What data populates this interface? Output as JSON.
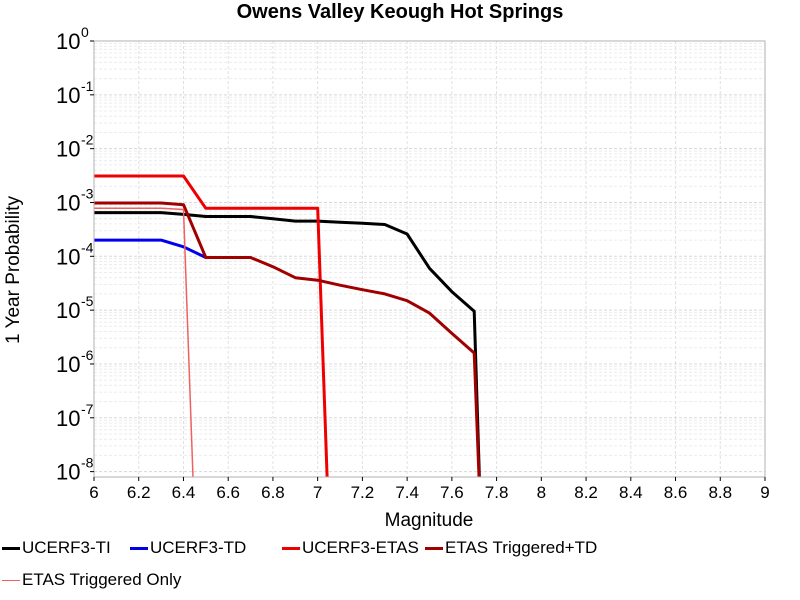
{
  "chart_data": {
    "type": "line",
    "title": "Owens Valley Keough Hot Springs",
    "xlabel": "Magnitude",
    "ylabel": "1 Year Probability",
    "xlim": [
      6,
      9
    ],
    "ylim_log10": [
      -8.1,
      0
    ],
    "yscale": "log",
    "grid": true,
    "x_ticks": [
      "6",
      "6.2",
      "6.4",
      "6.6",
      "6.8",
      "7",
      "7.2",
      "7.4",
      "7.6",
      "7.8",
      "8",
      "8.2",
      "8.4",
      "8.6",
      "8.8",
      "9"
    ],
    "y_ticks": [
      {
        "base": "10",
        "exp": "0"
      },
      {
        "base": "10",
        "exp": "-1"
      },
      {
        "base": "10",
        "exp": "-2"
      },
      {
        "base": "10",
        "exp": "-3"
      },
      {
        "base": "10",
        "exp": "-4"
      },
      {
        "base": "10",
        "exp": "-5"
      },
      {
        "base": "10",
        "exp": "-6"
      },
      {
        "base": "10",
        "exp": "-7"
      },
      {
        "base": "10",
        "exp": "-8"
      }
    ],
    "legend_position": "bottom",
    "series": [
      {
        "name": "UCERF3-TI",
        "color": "#000000",
        "width": 3,
        "points": [
          [
            6.0,
            0.00065
          ],
          [
            6.1,
            0.00065
          ],
          [
            6.2,
            0.00065
          ],
          [
            6.3,
            0.00065
          ],
          [
            6.4,
            0.0006
          ],
          [
            6.5,
            0.00055
          ],
          [
            6.6,
            0.00055
          ],
          [
            6.7,
            0.00055
          ],
          [
            6.8,
            0.0005
          ],
          [
            6.9,
            0.00045
          ],
          [
            7.0,
            0.00045
          ],
          [
            7.1,
            0.00043
          ],
          [
            7.2,
            0.00041
          ],
          [
            7.3,
            0.00039
          ],
          [
            7.4,
            0.00026
          ],
          [
            7.5,
            6e-05
          ],
          [
            7.6,
            2.2e-05
          ],
          [
            7.7,
            9.5e-06
          ],
          [
            7.73,
            1e-09
          ]
        ]
      },
      {
        "name": "UCERF3-TD",
        "color": "#0000ee",
        "width": 3,
        "points": [
          [
            6.0,
            0.0002
          ],
          [
            6.1,
            0.0002
          ],
          [
            6.2,
            0.0002
          ],
          [
            6.3,
            0.0002
          ],
          [
            6.4,
            0.00015
          ],
          [
            6.5,
            9.5e-05
          ]
        ]
      },
      {
        "name": "UCERF3-ETAS",
        "color": "#ee0000",
        "width": 3,
        "points": [
          [
            6.0,
            0.0031
          ],
          [
            6.1,
            0.0031
          ],
          [
            6.2,
            0.0031
          ],
          [
            6.3,
            0.0031
          ],
          [
            6.4,
            0.0031
          ],
          [
            6.5,
            0.00078
          ],
          [
            6.6,
            0.00078
          ],
          [
            6.7,
            0.00078
          ],
          [
            6.8,
            0.00078
          ],
          [
            6.9,
            0.00078
          ],
          [
            7.0,
            0.00078
          ],
          [
            7.05,
            1e-09
          ]
        ]
      },
      {
        "name": "ETAS Triggered+TD",
        "color": "#a00000",
        "width": 3,
        "points": [
          [
            6.0,
            0.00098
          ],
          [
            6.1,
            0.00098
          ],
          [
            6.2,
            0.00098
          ],
          [
            6.3,
            0.00098
          ],
          [
            6.4,
            0.00091
          ],
          [
            6.5,
            9.5e-05
          ],
          [
            6.6,
            9.5e-05
          ],
          [
            6.7,
            9.5e-05
          ],
          [
            6.8,
            6.4e-05
          ],
          [
            6.9,
            4e-05
          ],
          [
            7.0,
            3.6e-05
          ],
          [
            7.1,
            2.9e-05
          ],
          [
            7.2,
            2.4e-05
          ],
          [
            7.3,
            2e-05
          ],
          [
            7.4,
            1.5e-05
          ],
          [
            7.5,
            8.8e-06
          ],
          [
            7.6,
            3.7e-06
          ],
          [
            7.7,
            1.6e-06
          ],
          [
            7.73,
            1e-09
          ]
        ]
      },
      {
        "name": "ETAS Triggered Only",
        "color": "#f06060",
        "width": 1.5,
        "points": [
          [
            6.0,
            0.00078
          ],
          [
            6.1,
            0.00078
          ],
          [
            6.2,
            0.00078
          ],
          [
            6.3,
            0.00078
          ],
          [
            6.4,
            0.00074
          ],
          [
            6.45,
            1e-09
          ]
        ]
      }
    ]
  }
}
